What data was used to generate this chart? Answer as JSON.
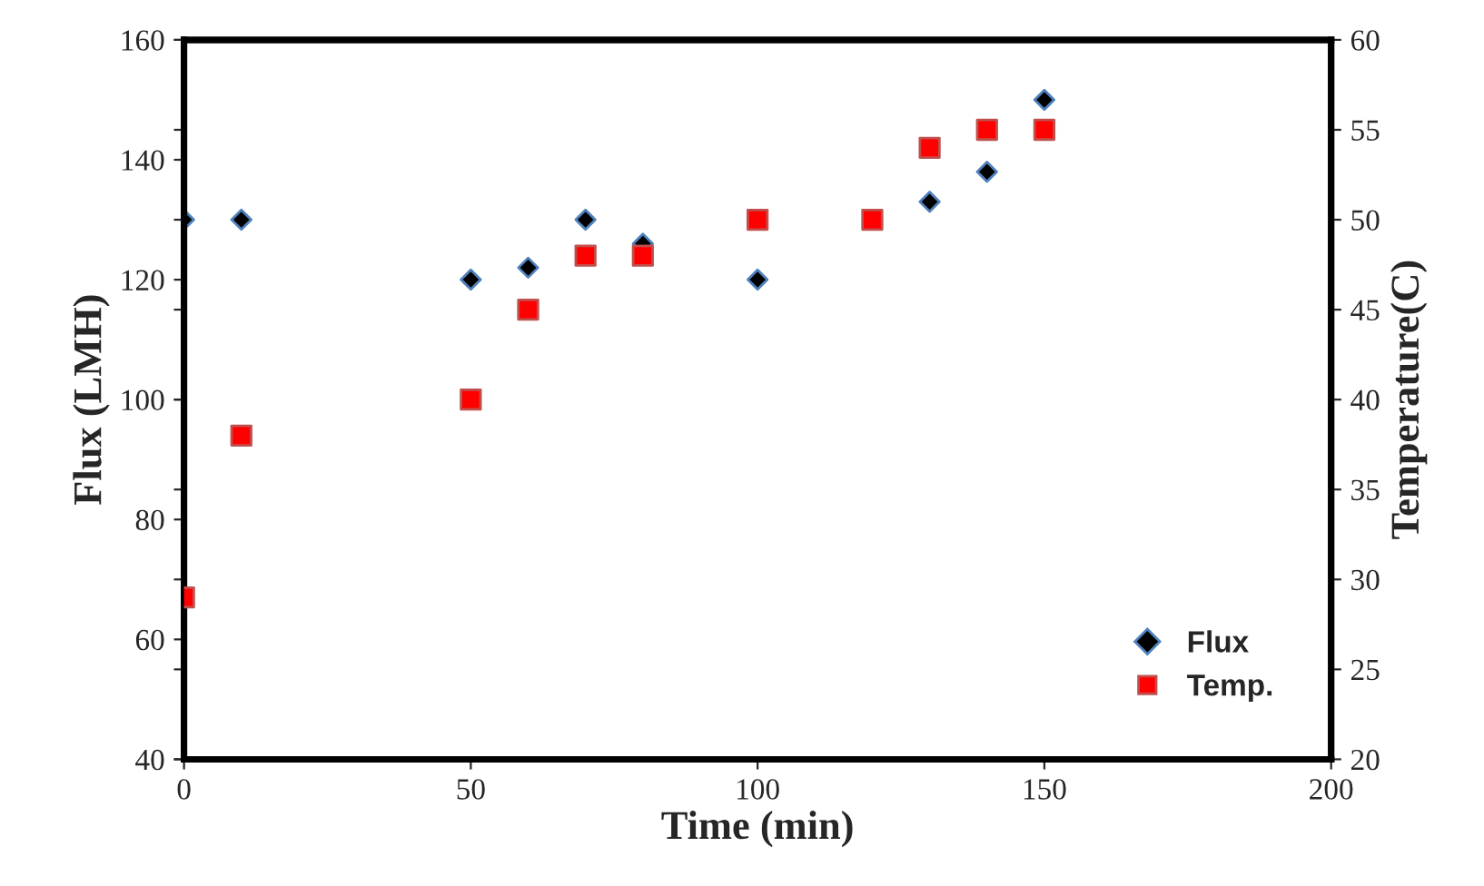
{
  "chart_data": {
    "type": "scatter",
    "xlabel": "Time (min)",
    "ylabel": "Flux (LMH)",
    "y2label": "Temperature(C)",
    "xlim": [
      0,
      200
    ],
    "xticks": [
      0,
      50,
      100,
      150,
      200
    ],
    "ylim": [
      40,
      160
    ],
    "yticks": [
      40,
      60,
      80,
      100,
      120,
      140,
      160
    ],
    "y2lim": [
      20,
      60
    ],
    "y2ticks": [
      20,
      25,
      30,
      35,
      40,
      45,
      50,
      55,
      60
    ],
    "grid": false,
    "legend": "bottom right",
    "series": [
      {
        "name": "Flux",
        "color": "#000000",
        "marker": "diamond",
        "x": [
          0,
          10,
          50,
          60,
          70,
          80,
          100,
          130,
          140,
          150
        ],
        "values": [
          130,
          130,
          120,
          122,
          130,
          126,
          120,
          133,
          138,
          150
        ]
      },
      {
        "name": "Temp.",
        "color": "#ff0000",
        "marker": "square",
        "axis": "y2",
        "x": [
          0,
          10,
          50,
          60,
          70,
          80,
          100,
          120,
          130,
          140,
          150
        ],
        "values": [
          29,
          38,
          40,
          45,
          48,
          48,
          50,
          50,
          54,
          55,
          55
        ]
      }
    ]
  }
}
